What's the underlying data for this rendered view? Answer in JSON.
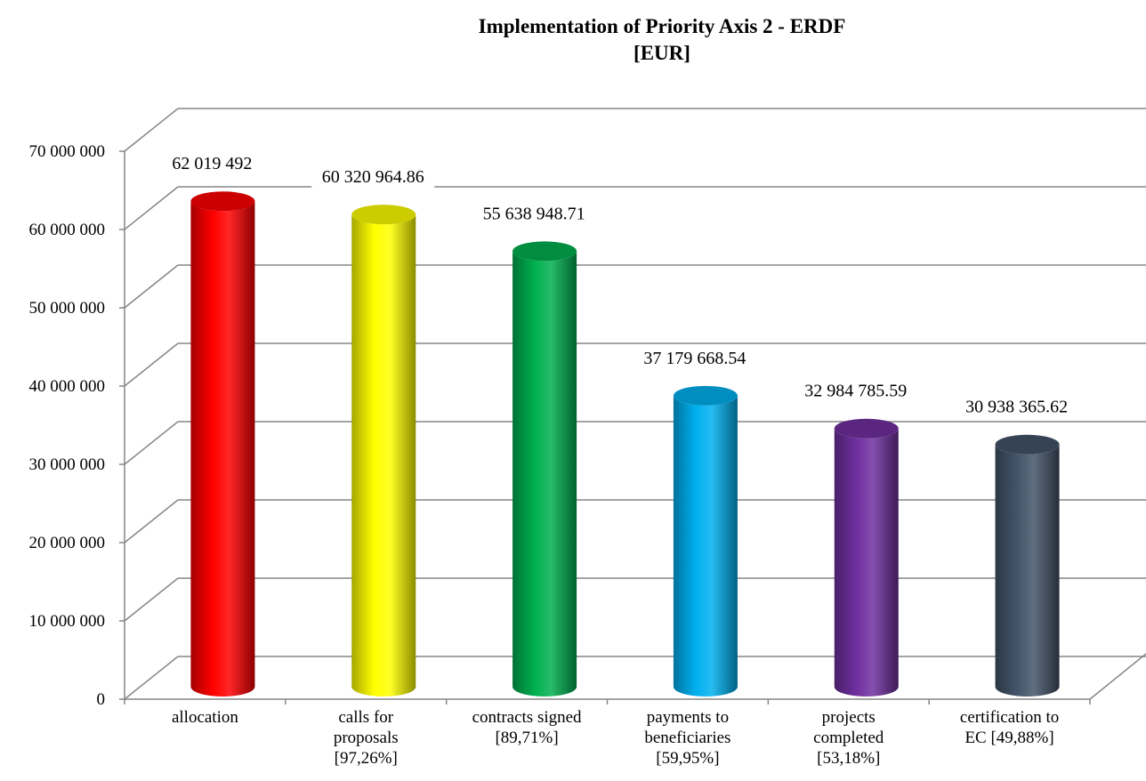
{
  "chart_data": {
    "type": "bar",
    "title": "Implementation of Priority Axis 2  - ERDF",
    "subtitle": "[EUR]",
    "xlabel": "",
    "ylabel": "",
    "ylim": [
      0,
      70000000
    ],
    "ytick_labels": [
      "0",
      "10 000 000",
      "20 000 000",
      "30 000 000",
      "40 000 000",
      "50 000 000",
      "60 000 000",
      "70 000 000"
    ],
    "grid": true,
    "categories": [
      [
        "allocation"
      ],
      [
        "calls for",
        "proposals",
        "[97,26%]"
      ],
      [
        "contracts signed",
        "[89,71%]"
      ],
      [
        "payments to",
        "beneficiaries",
        "[59,95%]"
      ],
      [
        "projects",
        "completed",
        "[53,18%]"
      ],
      [
        "certification to",
        "EC [49,88%]"
      ]
    ],
    "values": [
      62019492,
      60320964.86,
      55638948.71,
      37179668.54,
      32984785.59,
      30938365.62
    ],
    "data_labels": [
      "62 019 492",
      "60 320 964.86",
      "55 638 948.71",
      "37 179 668.54",
      "32 984 785.59",
      "30 938 365.62"
    ],
    "colors": [
      "#ff0000",
      "#ffff00",
      "#00b050",
      "#00b0f0",
      "#7030a0",
      "#44546a"
    ]
  }
}
